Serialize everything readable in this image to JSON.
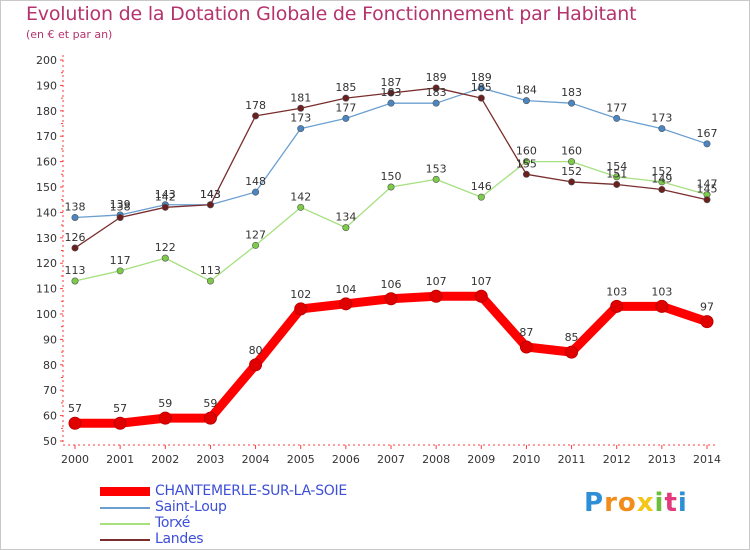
{
  "chart_data": {
    "type": "line",
    "title": "Evolution de la Dotation Globale de Fonctionnement par Habitant",
    "subtitle": "(en € et par an)",
    "x": [
      2000,
      2001,
      2002,
      2003,
      2004,
      2005,
      2006,
      2007,
      2008,
      2009,
      2010,
      2011,
      2012,
      2013,
      2014
    ],
    "x_tick_labels": [
      "2000",
      "2001",
      "2002",
      "2003",
      "2004",
      "2005",
      "2006",
      "2007",
      "2008",
      "2009",
      "2010",
      "2011",
      "2012",
      "2013",
      "2014"
    ],
    "ylim": [
      50,
      200
    ],
    "y_ticks": [
      50,
      60,
      70,
      80,
      90,
      100,
      110,
      120,
      130,
      140,
      150,
      160,
      170,
      180,
      190,
      200
    ],
    "y_tick_labels": [
      "50",
      "60",
      "70",
      "80",
      "90",
      "100",
      "110",
      "120",
      "130",
      "140",
      "150",
      "160",
      "170",
      "180",
      "190",
      "200"
    ],
    "grid": false,
    "legend_position": "bottom-left",
    "series": [
      {
        "name": "Saint-Loup",
        "color": "#6a9fd0",
        "marker_color": "#4a86c2",
        "values": [
          138,
          139,
          143,
          143,
          148,
          173,
          177,
          183,
          183,
          189,
          184,
          183,
          177,
          173,
          167
        ],
        "labels": [
          "138",
          "139",
          "143",
          "143",
          "148",
          "173",
          "177",
          "183",
          "183",
          "189",
          "184",
          "183",
          "177",
          "173",
          "167"
        ]
      },
      {
        "name": "Torxé",
        "color": "#a6e07f",
        "marker_color": "#7ccc4a",
        "values": [
          113,
          117,
          122,
          113,
          127,
          142,
          134,
          150,
          153,
          146,
          160,
          160,
          154,
          152,
          147
        ],
        "labels": [
          "113",
          "117",
          "122",
          "113",
          "127",
          "142",
          "134",
          "150",
          "153",
          "146",
          "160",
          "160",
          "154",
          "152",
          "147"
        ]
      },
      {
        "name": "Landes",
        "color": "#7a2d2d",
        "marker_color": "#6b1f1f",
        "values": [
          126,
          138,
          142,
          143,
          178,
          181,
          185,
          187,
          189,
          185,
          155,
          152,
          151,
          149,
          145
        ],
        "labels": [
          "126",
          "138",
          "142",
          "143",
          "178",
          "181",
          "185",
          "187",
          "189",
          "185",
          "155",
          "152",
          "151",
          "149",
          "145"
        ]
      },
      {
        "name": "CHANTEMERLE-SUR-LA-SOIE",
        "color": "#ff0000",
        "marker_color": "#e00000",
        "values": [
          57,
          57,
          59,
          59,
          80,
          102,
          104,
          106,
          107,
          107,
          87,
          85,
          103,
          103,
          97
        ],
        "labels": [
          "57",
          "57",
          "59",
          "59",
          "80",
          "102",
          "104",
          "106",
          "107",
          "107",
          "87",
          "85",
          "103",
          "103",
          "97"
        ]
      }
    ],
    "legend": [
      {
        "name": "CHANTEMERLE-SUR-LA-SOIE",
        "color": "#ff0000",
        "thickness": 9
      },
      {
        "name": "Saint-Loup",
        "color": "#6a9fd0",
        "thickness": 2
      },
      {
        "name": "Torxé",
        "color": "#a6e07f",
        "thickness": 2
      },
      {
        "name": "Landes",
        "color": "#7a2d2d",
        "thickness": 2
      }
    ]
  },
  "brand": {
    "letters": [
      "P",
      "r",
      "o",
      "x",
      "i",
      "t",
      "i"
    ],
    "colors": [
      "#2e8fd6",
      "#f28c1a",
      "#f28c1a",
      "#f2c71a",
      "#6cbf3a",
      "#e23a7a",
      "#2e8fd6"
    ]
  }
}
